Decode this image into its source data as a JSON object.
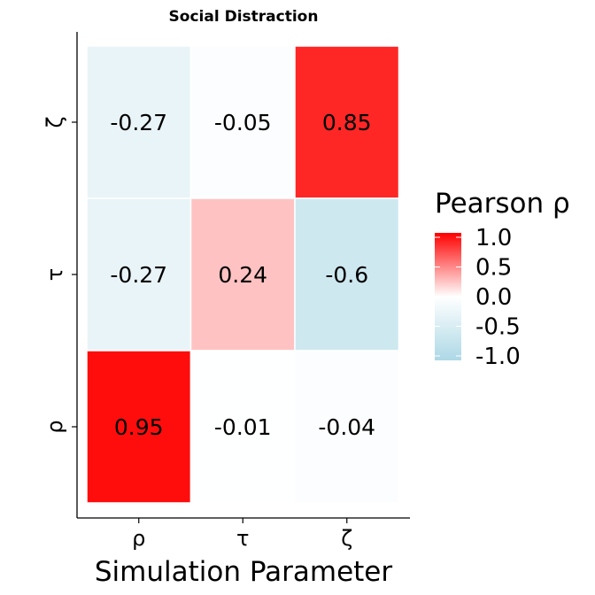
{
  "chart_data": {
    "type": "heatmap",
    "title": "Social Distraction",
    "xlabel": "Simulation Parameter",
    "ylabel": "",
    "x_categories": [
      "ρ",
      "τ",
      "ζ"
    ],
    "y_categories": [
      "ρ",
      "τ",
      "ζ"
    ],
    "cells": [
      {
        "x": "ρ",
        "y": "ζ",
        "value": -0.27,
        "label": "-0.27"
      },
      {
        "x": "τ",
        "y": "ζ",
        "value": -0.05,
        "label": "-0.05"
      },
      {
        "x": "ζ",
        "y": "ζ",
        "value": 0.85,
        "label": "0.85"
      },
      {
        "x": "ρ",
        "y": "τ",
        "value": -0.27,
        "label": "-0.27"
      },
      {
        "x": "τ",
        "y": "τ",
        "value": 0.24,
        "label": "0.24"
      },
      {
        "x": "ζ",
        "y": "τ",
        "value": -0.6,
        "label": "-0.6"
      },
      {
        "x": "ρ",
        "y": "ρ",
        "value": 0.95,
        "label": "0.95"
      },
      {
        "x": "τ",
        "y": "ρ",
        "value": -0.01,
        "label": "-0.01"
      },
      {
        "x": "ζ",
        "y": "ρ",
        "value": -0.04,
        "label": "-0.04"
      }
    ],
    "colorscale": {
      "low": "#add8e6",
      "mid": "#ffffff",
      "high": "#ff0000",
      "range": [
        -1.0,
        1.0
      ]
    },
    "legend": {
      "title": "Pearson ρ",
      "ticks": [
        "1.0",
        "0.5",
        "0.0",
        "-0.5",
        "-1.0"
      ],
      "placement": "right"
    },
    "grid": false
  }
}
